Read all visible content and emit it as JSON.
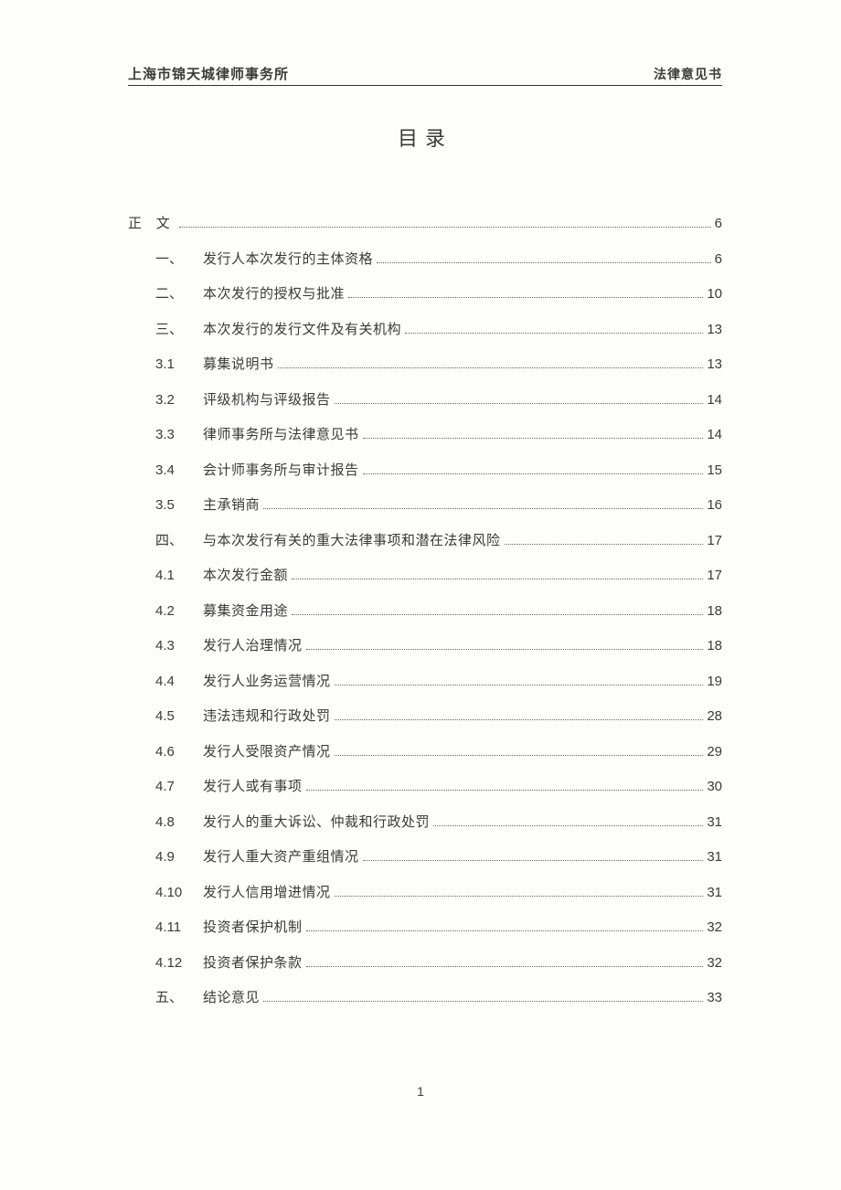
{
  "header": {
    "left": "上海市锦天城律师事务所",
    "right": "法律意见书"
  },
  "title": "目录",
  "toc": {
    "main": {
      "label": "正 文",
      "page": "6"
    },
    "items": [
      {
        "num": "一、",
        "cn": true,
        "label": "发行人本次发行的主体资格",
        "page": "6"
      },
      {
        "num": "二、",
        "cn": true,
        "label": "本次发行的授权与批准",
        "page": "10"
      },
      {
        "num": "三、",
        "cn": true,
        "label": "本次发行的发行文件及有关机构",
        "page": "13"
      },
      {
        "num": "3.1",
        "cn": false,
        "label": "募集说明书",
        "page": "13"
      },
      {
        "num": "3.2",
        "cn": false,
        "label": "评级机构与评级报告",
        "page": "14"
      },
      {
        "num": "3.3",
        "cn": false,
        "label": "律师事务所与法律意见书",
        "page": "14"
      },
      {
        "num": "3.4",
        "cn": false,
        "label": "会计师事务所与审计报告",
        "page": "15"
      },
      {
        "num": "3.5",
        "cn": false,
        "label": "主承销商",
        "page": "16"
      },
      {
        "num": "四、",
        "cn": true,
        "label": "与本次发行有关的重大法律事项和潜在法律风险",
        "page": "17"
      },
      {
        "num": "4.1",
        "cn": false,
        "label": "本次发行金额",
        "page": "17"
      },
      {
        "num": "4.2",
        "cn": false,
        "label": "募集资金用途",
        "page": "18"
      },
      {
        "num": "4.3",
        "cn": false,
        "label": "发行人治理情况",
        "page": "18"
      },
      {
        "num": "4.4",
        "cn": false,
        "label": "发行人业务运营情况",
        "page": "19"
      },
      {
        "num": "4.5",
        "cn": false,
        "label": "违法违规和行政处罚",
        "page": "28"
      },
      {
        "num": "4.6",
        "cn": false,
        "label": "发行人受限资产情况",
        "page": "29"
      },
      {
        "num": "4.7",
        "cn": false,
        "label": "发行人或有事项",
        "page": "30"
      },
      {
        "num": "4.8",
        "cn": false,
        "label": "发行人的重大诉讼、仲裁和行政处罚",
        "page": "31"
      },
      {
        "num": "4.9",
        "cn": false,
        "label": "发行人重大资产重组情况",
        "page": "31"
      },
      {
        "num": "4.10",
        "cn": false,
        "label": "发行人信用增进情况",
        "page": "31"
      },
      {
        "num": "4.11",
        "cn": false,
        "label": "投资者保护机制",
        "page": "32"
      },
      {
        "num": "4.12",
        "cn": false,
        "label": "投资者保护条款",
        "page": "32"
      },
      {
        "num": "五、",
        "cn": true,
        "label": "结论意见",
        "page": "33"
      }
    ]
  },
  "footer": {
    "page_number": "1"
  }
}
